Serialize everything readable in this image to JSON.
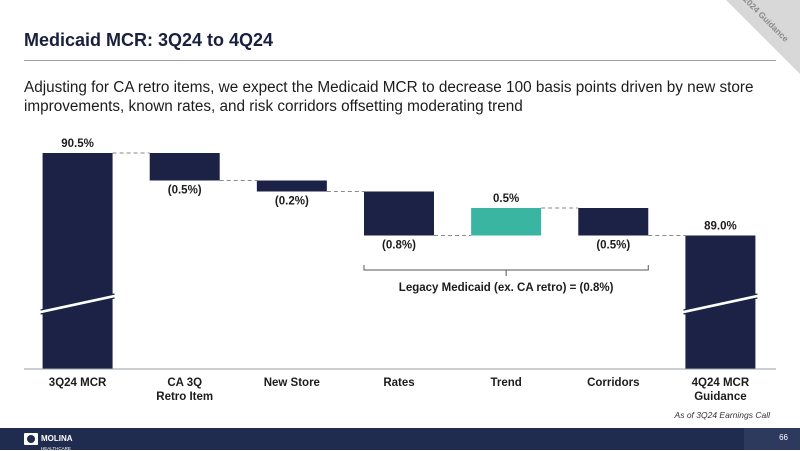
{
  "page": {
    "title": "Medicaid MCR: 3Q24 to 4Q24",
    "ribbon": "2024 Guidance",
    "subtitle": "Adjusting for CA retro items, we expect the Medicaid MCR to decrease 100 basis points driven by new store improvements, known rates, and risk corridors offsetting moderating trend",
    "note": "As of 3Q24 Earnings Call",
    "page_number": "66",
    "logo": {
      "name": "MOLINA",
      "sub": "HEALTHCARE"
    }
  },
  "colors": {
    "navy": "#1b2246",
    "teal": "#3ab5a1",
    "footer": "#1f2c4f"
  },
  "chart_data": {
    "type": "waterfall",
    "title": "Medicaid MCR: 3Q24 to 4Q24",
    "units": "percent",
    "axis_break": true,
    "categories": [
      {
        "label": [
          "3Q24 MCR"
        ],
        "kind": "total",
        "value": 90.5,
        "data_label": "90.5%"
      },
      {
        "label": [
          "CA 3Q",
          "Retro Item"
        ],
        "kind": "delta",
        "value": -0.5,
        "data_label": "(0.5%)"
      },
      {
        "label": [
          "New Store"
        ],
        "kind": "delta",
        "value": -0.2,
        "data_label": "(0.2%)"
      },
      {
        "label": [
          "Rates"
        ],
        "kind": "delta",
        "value": -0.8,
        "data_label": "(0.8%)"
      },
      {
        "label": [
          "Trend"
        ],
        "kind": "delta",
        "value": 0.5,
        "data_label": "0.5%"
      },
      {
        "label": [
          "Corridors"
        ],
        "kind": "delta",
        "value": -0.5,
        "data_label": "(0.5%)"
      },
      {
        "label": [
          "4Q24 MCR",
          "Guidance"
        ],
        "kind": "total",
        "value": 89.0,
        "data_label": "89.0%"
      }
    ],
    "bracket": {
      "from_index": 3,
      "to_index": 5,
      "label": "Legacy Medicaid (ex. CA retro) = (0.8%)"
    }
  }
}
